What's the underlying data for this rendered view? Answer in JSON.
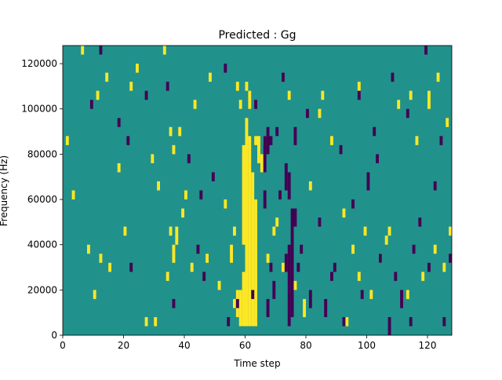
{
  "chart_data": {
    "type": "heatmap",
    "title": "Predicted : Gg",
    "xlabel": "Time step",
    "ylabel": "Frequency (Hz)",
    "xlim": [
      0,
      128
    ],
    "ylim": [
      0,
      128000
    ],
    "x_ticks": [
      0,
      20,
      40,
      60,
      80,
      100,
      120
    ],
    "y_ticks": [
      0,
      20000,
      40000,
      60000,
      80000,
      100000,
      120000
    ],
    "x_tick_labels": [
      "0",
      "20",
      "40",
      "60",
      "80",
      "100",
      "120"
    ],
    "y_tick_labels": [
      "0",
      "20000",
      "40000",
      "60000",
      "80000",
      "100000",
      "120000"
    ],
    "grid": false,
    "colormap": "viridis",
    "cell_height_hz": 4000,
    "colors": {
      "background": "#21918c",
      "high": "#fde725",
      "low": "#440154"
    },
    "high_cells": [
      [
        58,
        4000,
        20000
      ],
      [
        59,
        4000,
        28000
      ],
      [
        60,
        4000,
        96000
      ],
      [
        61,
        4000,
        88000
      ],
      [
        62,
        4000,
        72000
      ],
      [
        63,
        4000,
        60000
      ],
      [
        56,
        12000,
        16000
      ],
      [
        57,
        8000,
        20000
      ],
      [
        59,
        40000,
        84000
      ],
      [
        58,
        100000,
        104000
      ],
      [
        61,
        100000,
        108000
      ],
      [
        60,
        108000,
        112000
      ],
      [
        63,
        84000,
        88000
      ],
      [
        64,
        76000,
        88000
      ],
      [
        65,
        72000,
        80000
      ],
      [
        57,
        108000,
        112000
      ],
      [
        10,
        16000,
        20000
      ],
      [
        8,
        36000,
        40000
      ],
      [
        12,
        32000,
        36000
      ],
      [
        15,
        28000,
        32000
      ],
      [
        20,
        44000,
        48000
      ],
      [
        27,
        4000,
        8000
      ],
      [
        30,
        4000,
        8000
      ],
      [
        34,
        24000,
        28000
      ],
      [
        36,
        32000,
        40000
      ],
      [
        37,
        40000,
        48000
      ],
      [
        35,
        44000,
        48000
      ],
      [
        39,
        52000,
        56000
      ],
      [
        40,
        60000,
        64000
      ],
      [
        31,
        64000,
        68000
      ],
      [
        36,
        80000,
        84000
      ],
      [
        38,
        88000,
        92000
      ],
      [
        35,
        88000,
        92000
      ],
      [
        14,
        112000,
        116000
      ],
      [
        22,
        108000,
        112000
      ],
      [
        33,
        124000,
        128000
      ],
      [
        42,
        28000,
        32000
      ],
      [
        47,
        32000,
        36000
      ],
      [
        51,
        20000,
        24000
      ],
      [
        55,
        32000,
        40000
      ],
      [
        56,
        44000,
        48000
      ],
      [
        70,
        48000,
        52000
      ],
      [
        69,
        44000,
        48000
      ],
      [
        72,
        28000,
        32000
      ],
      [
        76,
        20000,
        24000
      ],
      [
        79,
        8000,
        16000
      ],
      [
        81,
        64000,
        68000
      ],
      [
        84,
        96000,
        100000
      ],
      [
        85,
        104000,
        108000
      ],
      [
        93,
        4000,
        8000
      ],
      [
        95,
        36000,
        40000
      ],
      [
        97,
        24000,
        28000
      ],
      [
        99,
        44000,
        48000
      ],
      [
        101,
        16000,
        20000
      ],
      [
        104,
        32000,
        36000
      ],
      [
        106,
        40000,
        44000
      ],
      [
        110,
        100000,
        104000
      ],
      [
        114,
        104000,
        108000
      ],
      [
        116,
        84000,
        88000
      ],
      [
        120,
        100000,
        108000
      ],
      [
        118,
        24000,
        28000
      ],
      [
        122,
        36000,
        40000
      ],
      [
        125,
        28000,
        32000
      ],
      [
        127,
        44000,
        48000
      ],
      [
        1,
        84000,
        88000
      ],
      [
        3,
        60000,
        64000
      ],
      [
        6,
        124000,
        128000
      ],
      [
        11,
        104000,
        108000
      ],
      [
        18,
        72000,
        76000
      ],
      [
        24,
        116000,
        120000
      ],
      [
        29,
        76000,
        80000
      ],
      [
        43,
        100000,
        104000
      ],
      [
        48,
        112000,
        116000
      ],
      [
        53,
        56000,
        60000
      ],
      [
        66,
        84000,
        88000
      ],
      [
        67,
        32000,
        36000
      ],
      [
        74,
        104000,
        108000
      ],
      [
        88,
        84000,
        88000
      ],
      [
        92,
        52000,
        56000
      ],
      [
        97,
        108000,
        112000
      ],
      [
        107,
        44000,
        48000
      ],
      [
        113,
        16000,
        20000
      ],
      [
        123,
        112000,
        116000
      ],
      [
        126,
        92000,
        96000
      ]
    ],
    "low_cells": [
      [
        74,
        4000,
        40000
      ],
      [
        75,
        8000,
        56000
      ],
      [
        76,
        48000,
        56000
      ],
      [
        67,
        8000,
        16000
      ],
      [
        68,
        28000,
        32000
      ],
      [
        69,
        16000,
        24000
      ],
      [
        71,
        60000,
        64000
      ],
      [
        73,
        28000,
        36000
      ],
      [
        74,
        60000,
        72000
      ],
      [
        76,
        84000,
        92000
      ],
      [
        80,
        96000,
        100000
      ],
      [
        66,
        72000,
        88000
      ],
      [
        67,
        80000,
        92000
      ],
      [
        68,
        84000,
        88000
      ],
      [
        66,
        56000,
        64000
      ],
      [
        70,
        88000,
        92000
      ],
      [
        73,
        64000,
        76000
      ],
      [
        77,
        28000,
        32000
      ],
      [
        78,
        36000,
        40000
      ],
      [
        81,
        12000,
        20000
      ],
      [
        86,
        8000,
        16000
      ],
      [
        89,
        28000,
        32000
      ],
      [
        92,
        4000,
        8000
      ],
      [
        95,
        56000,
        60000
      ],
      [
        98,
        16000,
        20000
      ],
      [
        100,
        64000,
        72000
      ],
      [
        104,
        32000,
        36000
      ],
      [
        107,
        0,
        8000
      ],
      [
        109,
        24000,
        28000
      ],
      [
        111,
        12000,
        20000
      ],
      [
        114,
        4000,
        8000
      ],
      [
        117,
        48000,
        52000
      ],
      [
        120,
        28000,
        32000
      ],
      [
        125,
        4000,
        8000
      ],
      [
        127,
        32000,
        36000
      ],
      [
        9,
        100000,
        104000
      ],
      [
        18,
        92000,
        96000
      ],
      [
        21,
        84000,
        88000
      ],
      [
        27,
        104000,
        108000
      ],
      [
        34,
        108000,
        112000
      ],
      [
        41,
        76000,
        80000
      ],
      [
        45,
        60000,
        64000
      ],
      [
        49,
        68000,
        72000
      ],
      [
        53,
        116000,
        120000
      ],
      [
        63,
        100000,
        104000
      ],
      [
        72,
        112000,
        116000
      ],
      [
        84,
        48000,
        52000
      ],
      [
        91,
        80000,
        84000
      ],
      [
        97,
        104000,
        108000
      ],
      [
        102,
        88000,
        92000
      ],
      [
        108,
        112000,
        116000
      ],
      [
        113,
        96000,
        100000
      ],
      [
        119,
        124000,
        128000
      ],
      [
        122,
        64000,
        68000
      ],
      [
        12,
        124000,
        128000
      ],
      [
        22,
        28000,
        32000
      ],
      [
        36,
        12000,
        16000
      ],
      [
        44,
        36000,
        40000
      ],
      [
        46,
        24000,
        28000
      ],
      [
        54,
        4000,
        8000
      ],
      [
        57,
        12000,
        16000
      ],
      [
        62,
        16000,
        20000
      ],
      [
        88,
        24000,
        28000
      ],
      [
        103,
        76000,
        80000
      ],
      [
        115,
        36000,
        40000
      ],
      [
        124,
        84000,
        88000
      ]
    ]
  }
}
